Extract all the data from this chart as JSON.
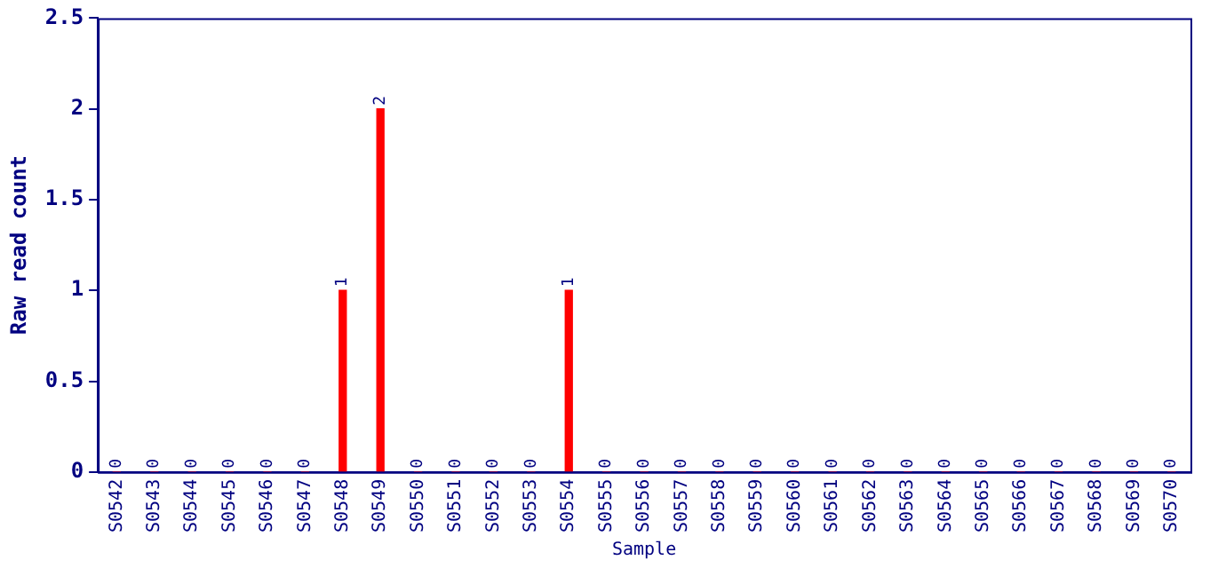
{
  "chart_data": {
    "type": "bar",
    "xlabel": "Sample",
    "ylabel": "Raw read count",
    "categories": [
      "S0542",
      "S0543",
      "S0544",
      "S0545",
      "S0546",
      "S0547",
      "S0548",
      "S0549",
      "S0550",
      "S0551",
      "S0552",
      "S0553",
      "S0554",
      "S0555",
      "S0556",
      "S0557",
      "S0558",
      "S0559",
      "S0560",
      "S0561",
      "S0562",
      "S0563",
      "S0564",
      "S0565",
      "S0566",
      "S0567",
      "S0568",
      "S0569",
      "S0570"
    ],
    "values": [
      0,
      0,
      0,
      0,
      0,
      0,
      1,
      2,
      0,
      0,
      0,
      0,
      1,
      0,
      0,
      0,
      0,
      0,
      0,
      0,
      0,
      0,
      0,
      0,
      0,
      0,
      0,
      0,
      0
    ],
    "color": "#ff0000",
    "ylim": [
      0,
      2.5
    ],
    "yticks": [
      0,
      0.5,
      1,
      1.5,
      2,
      2.5
    ],
    "grid": false,
    "data_labels": true
  }
}
